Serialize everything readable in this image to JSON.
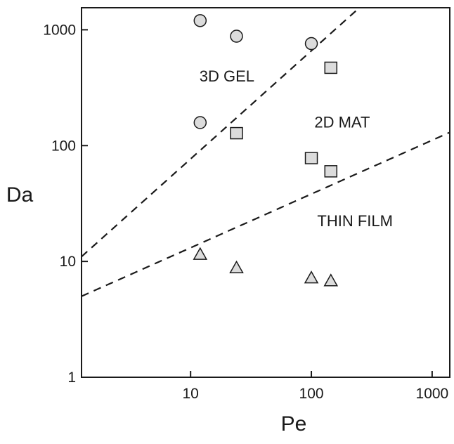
{
  "chart_data": {
    "type": "scatter",
    "title": "",
    "xlabel": "Pe",
    "ylabel": "Da",
    "xscale": "log",
    "yscale": "log",
    "xlim": [
      1.25,
      1400
    ],
    "ylim": [
      1,
      1550
    ],
    "grid": false,
    "x_ticks": [
      {
        "value": 10,
        "label": "10"
      },
      {
        "value": 100,
        "label": "100"
      },
      {
        "value": 1000,
        "label": "1000"
      }
    ],
    "y_ticks": [
      {
        "value": 1,
        "label": "1"
      },
      {
        "value": 10,
        "label": "10"
      },
      {
        "value": 100,
        "label": "100"
      },
      {
        "value": 1000,
        "label": "1000"
      }
    ],
    "series": [
      {
        "marker": "circle",
        "points": [
          {
            "x": 12,
            "y": 1200
          },
          {
            "x": 24,
            "y": 880
          },
          {
            "x": 100,
            "y": 760
          },
          {
            "x": 12,
            "y": 158
          }
        ]
      },
      {
        "marker": "square",
        "points": [
          {
            "x": 145,
            "y": 470
          },
          {
            "x": 24,
            "y": 128
          },
          {
            "x": 100,
            "y": 78
          },
          {
            "x": 145,
            "y": 60
          }
        ]
      },
      {
        "marker": "triangle",
        "points": [
          {
            "x": 12,
            "y": 11.5
          },
          {
            "x": 24,
            "y": 8.8
          },
          {
            "x": 100,
            "y": 7.2
          },
          {
            "x": 145,
            "y": 6.8
          }
        ]
      }
    ],
    "boundaries": [
      {
        "style": "dashed",
        "points": [
          {
            "x": 1.25,
            "y": 11
          },
          {
            "x": 250,
            "y": 1550
          }
        ]
      },
      {
        "style": "dashed",
        "points": [
          {
            "x": 1.25,
            "y": 5
          },
          {
            "x": 1400,
            "y": 130
          }
        ]
      }
    ],
    "region_labels": [
      {
        "text": "3D GEL",
        "x": 20,
        "y": 400
      },
      {
        "text": "2D MAT",
        "x": 180,
        "y": 160
      },
      {
        "text": "THIN FILM",
        "x": 230,
        "y": 22.5
      }
    ],
    "marker_fill": "#dcdcdc",
    "marker_stroke": "#1a1a1a"
  }
}
